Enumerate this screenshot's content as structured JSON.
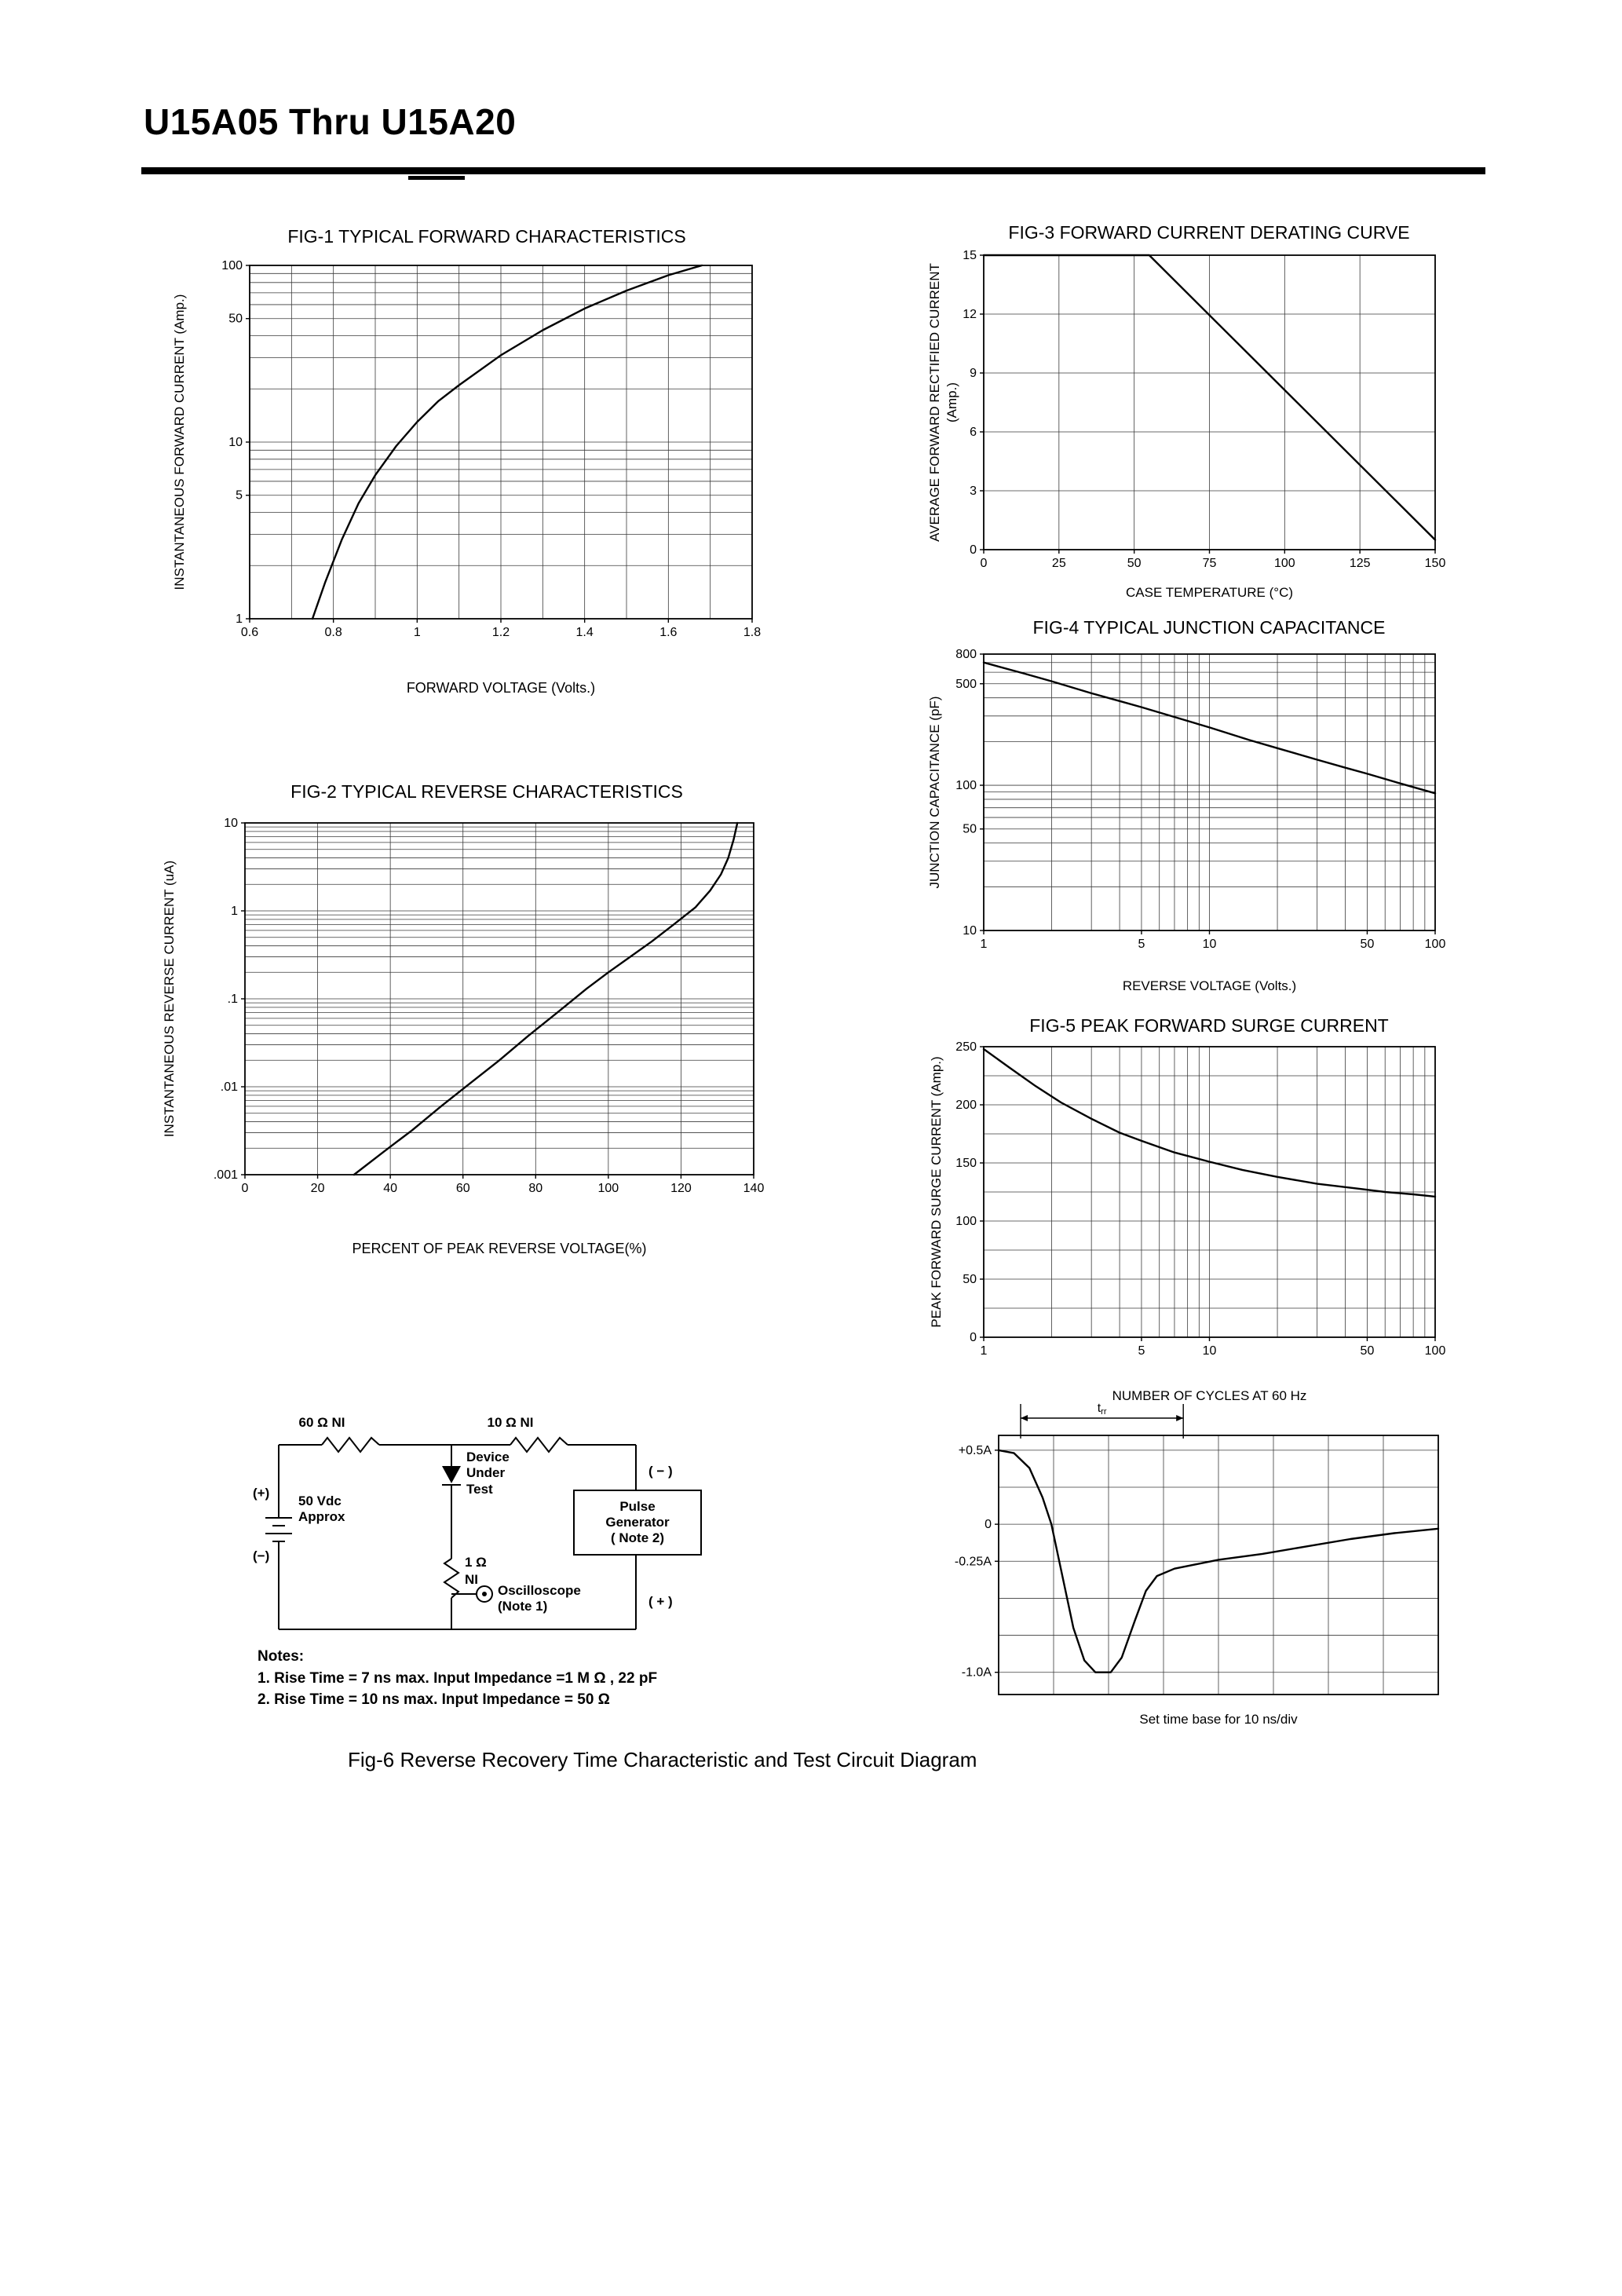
{
  "page": {
    "title": "U15A05 Thru U15A20"
  },
  "fig6_caption": "Fig-6 Reverse Recovery Time Characteristic and Test Circuit Diagram",
  "figures": {
    "fig1": {
      "title": "FIG-1 TYPICAL FORWARD CHARACTERISTICS",
      "xlabel": "FORWARD VOLTAGE (Volts.)",
      "ylabel": "INSTANTANEOUS FORWARD CURRENT (Amp.)"
    },
    "fig2": {
      "title": "FIG-2 TYPICAL REVERSE CHARACTERISTICS",
      "xlabel": "PERCENT OF PEAK REVERSE VOLTAGE(%)",
      "ylabel": "INSTANTANEOUS REVERSE CURRENT (uA)"
    },
    "fig3": {
      "title": "FIG-3 FORWARD CURRENT DERATING CURVE",
      "xlabel": "CASE TEMPERATURE (°C)",
      "ylabel": "AVERAGE FORWARD RECTIFIED CURRENT (Amp.)"
    },
    "fig4": {
      "title": "FIG-4 TYPICAL JUNCTION CAPACITANCE",
      "xlabel": "REVERSE VOLTAGE (Volts.)",
      "ylabel": "JUNCTION CAPACITANCE (pF)"
    },
    "fig5": {
      "title": "FIG-5 PEAK FORWARD SURGE CURRENT",
      "xlabel": "NUMBER OF CYCLES AT 60 Hz",
      "ylabel": "PEAK FORWARD SURGE CURRENT (Amp.)"
    },
    "fig6": {
      "timebase": "Set time base for 10  ns/div"
    }
  },
  "circuit": {
    "r60": "60 Ω  NI",
    "r10": "10 Ω  NI",
    "dut": "Device\nUnder\nTest",
    "plus_left": "(+)",
    "minus_left": "(−)",
    "battery": "50 Vdc\nApprox",
    "pulse": "Pulse\nGenerator\n( Note 2)",
    "minus_right": "( − )",
    "plus_right": "( + )",
    "r1": "1 Ω",
    "ni": "NI",
    "osc": "Oscilloscope\n(Note 1)",
    "notes_title": "Notes:",
    "note1": "1. Rise Time = 7 ns max. Input Impedance =1 M Ω , 22 pF",
    "note2": "2. Rise Time = 10 ns max. Input Impedance = 50 Ω"
  },
  "chart_data": [
    {
      "id": "fig1",
      "type": "line",
      "title": "FIG-1 TYPICAL FORWARD CHARACTERISTICS",
      "xlabel": "FORWARD VOLTAGE (Volts.)",
      "ylabel": "INSTANTANEOUS FORWARD CURRENT (Amp.)",
      "x": {
        "scale": "linear",
        "min": 0.6,
        "max": 1.8,
        "grid_step": 0.1,
        "tick_values": [
          0.6,
          0.8,
          1,
          1.2,
          1.4,
          1.6,
          1.8
        ],
        "tick_labels": [
          "0.6",
          "0.8",
          "1",
          "1.2",
          "1.4",
          "1.6",
          "1.8"
        ]
      },
      "y": {
        "scale": "log",
        "min": 1,
        "max": 100,
        "tick_values": [
          1,
          5,
          10,
          50,
          100
        ],
        "tick_labels": [
          "1",
          "5",
          "10",
          "50",
          "100"
        ]
      },
      "series": [
        {
          "name": "instantaneous-forward-current",
          "points": [
            [
              0.75,
              1
            ],
            [
              0.78,
              1.6
            ],
            [
              0.82,
              2.8
            ],
            [
              0.86,
              4.5
            ],
            [
              0.9,
              6.5
            ],
            [
              0.95,
              9.5
            ],
            [
              1,
              13
            ],
            [
              1.05,
              17
            ],
            [
              1.1,
              21
            ],
            [
              1.2,
              31
            ],
            [
              1.3,
              43
            ],
            [
              1.4,
              57
            ],
            [
              1.5,
              72
            ],
            [
              1.6,
              88
            ],
            [
              1.68,
              100
            ]
          ]
        }
      ]
    },
    {
      "id": "fig2",
      "type": "line",
      "title": "FIG-2 TYPICAL REVERSE CHARACTERISTICS",
      "xlabel": "PERCENT OF PEAK REVERSE VOLTAGE(%)",
      "ylabel": "INSTANTANEOUS REVERSE CURRENT (uA)",
      "x": {
        "scale": "linear",
        "min": 0,
        "max": 140,
        "grid_step": 20,
        "tick_values": [
          0,
          20,
          40,
          60,
          80,
          100,
          120,
          140
        ],
        "tick_labels": [
          "0",
          "20",
          "40",
          "60",
          "80",
          "100",
          "120",
          "140"
        ]
      },
      "y": {
        "scale": "log",
        "min": 0.001,
        "max": 10,
        "tick_values": [
          10,
          1,
          0.1,
          0.01,
          0.001
        ],
        "tick_labels": [
          "10",
          "1",
          ".1",
          ".01",
          ".001"
        ]
      },
      "series": [
        {
          "name": "instantaneous-reverse-current",
          "points": [
            [
              30,
              0.001
            ],
            [
              38,
              0.0018
            ],
            [
              46,
              0.0032
            ],
            [
              54,
              0.006
            ],
            [
              62,
              0.011
            ],
            [
              70,
              0.02
            ],
            [
              78,
              0.038
            ],
            [
              86,
              0.07
            ],
            [
              94,
              0.13
            ],
            [
              100,
              0.2
            ],
            [
              106,
              0.3
            ],
            [
              112,
              0.45
            ],
            [
              118,
              0.7
            ],
            [
              124,
              1.1
            ],
            [
              128,
              1.7
            ],
            [
              131,
              2.6
            ],
            [
              133,
              4
            ],
            [
              134.5,
              6.5
            ],
            [
              135.5,
              10
            ]
          ]
        }
      ]
    },
    {
      "id": "fig3",
      "type": "line",
      "title": "FIG-3 FORWARD CURRENT DERATING CURVE",
      "xlabel": "CASE TEMPERATURE (°C)",
      "ylabel": "AVERAGE FORWARD RECTIFIED CURRENT (Amp.)",
      "x": {
        "scale": "linear",
        "min": 0,
        "max": 150,
        "grid_step": 25,
        "tick_values": [
          0,
          25,
          50,
          75,
          100,
          125,
          150
        ],
        "tick_labels": [
          "0",
          "25",
          "50",
          "75",
          "100",
          "125",
          "150"
        ]
      },
      "y": {
        "scale": "linear",
        "min": 0,
        "max": 15,
        "grid_step": 3,
        "tick_values": [
          0,
          3,
          6,
          9,
          12,
          15
        ],
        "tick_labels": [
          "0",
          "3",
          "6",
          "9",
          "12",
          "15"
        ]
      },
      "series": [
        {
          "name": "average-forward-rectified-current",
          "points": [
            [
              0,
              15
            ],
            [
              55,
              15
            ],
            [
              150,
              0.5
            ]
          ]
        }
      ]
    },
    {
      "id": "fig4",
      "type": "line",
      "title": "FIG-4 TYPICAL JUNCTION CAPACITANCE",
      "xlabel": "REVERSE VOLTAGE (Volts.)",
      "ylabel": "JUNCTION CAPACITANCE (pF)",
      "x": {
        "scale": "log",
        "min": 1,
        "max": 100,
        "tick_values": [
          1,
          5,
          10,
          50,
          100
        ],
        "tick_labels": [
          "1",
          "5",
          "10",
          "50",
          "100"
        ]
      },
      "y": {
        "scale": "log",
        "min": 10,
        "max": 800,
        "tick_values": [
          800,
          500,
          100,
          50,
          10
        ],
        "tick_labels": [
          "800",
          "500",
          "100",
          "50",
          "10"
        ]
      },
      "series": [
        {
          "name": "junction-capacitance",
          "points": [
            [
              1,
              700
            ],
            [
              1.5,
              590
            ],
            [
              2,
              520
            ],
            [
              3,
              430
            ],
            [
              4,
              380
            ],
            [
              5,
              345
            ],
            [
              7,
              295
            ],
            [
              10,
              250
            ],
            [
              15,
              205
            ],
            [
              20,
              180
            ],
            [
              30,
              150
            ],
            [
              40,
              132
            ],
            [
              50,
              120
            ],
            [
              70,
              103
            ],
            [
              100,
              88
            ]
          ]
        }
      ]
    },
    {
      "id": "fig5",
      "type": "line",
      "title": "FIG-5 PEAK FORWARD SURGE CURRENT",
      "xlabel": "NUMBER OF CYCLES AT 60 Hz",
      "ylabel": "PEAK FORWARD SURGE CURRENT (Amp.)",
      "x": {
        "scale": "log",
        "min": 1,
        "max": 100,
        "tick_values": [
          1,
          5,
          10,
          50,
          100
        ],
        "tick_labels": [
          "1",
          "5",
          "10",
          "50",
          "100"
        ]
      },
      "y": {
        "scale": "linear",
        "min": 0,
        "max": 250,
        "grid_step": 25,
        "tick_values": [
          0,
          50,
          100,
          150,
          200,
          250
        ],
        "tick_labels": [
          "0",
          "50",
          "100",
          "150",
          "200",
          "250"
        ]
      },
      "series": [
        {
          "name": "peak-forward-surge-current",
          "points": [
            [
              1,
              248
            ],
            [
              1.3,
              232
            ],
            [
              1.7,
              216
            ],
            [
              2.2,
              202
            ],
            [
              3,
              188
            ],
            [
              4,
              176
            ],
            [
              5,
              169
            ],
            [
              7,
              159
            ],
            [
              10,
              151
            ],
            [
              14,
              144
            ],
            [
              20,
              138
            ],
            [
              30,
              132
            ],
            [
              45,
              128
            ],
            [
              60,
              125
            ],
            [
              80,
              123
            ],
            [
              100,
              121
            ]
          ]
        }
      ]
    },
    {
      "id": "fig6wave",
      "type": "line",
      "title": "Reverse Recovery Time Characteristic",
      "xlabel": "Set time base for 10  ns/div",
      "ylabel": "",
      "x": {
        "scale": "linear",
        "min": 0,
        "max": 10,
        "grid_step": 1.25,
        "tick_values": [],
        "tick_labels": []
      },
      "y": {
        "scale": "linear",
        "min": -1.15,
        "max": 0.6,
        "grid_values": [
          0.5,
          0.25,
          0,
          -0.25,
          -0.5,
          -0.75,
          -1
        ],
        "tick_values": [
          0.5,
          0,
          -0.25,
          -1
        ],
        "tick_labels": [
          "+0.5A",
          "0",
          "-0.25A",
          "-1.0A"
        ]
      },
      "annotation": {
        "x_from": 0.5,
        "x_to": 4.2,
        "label_main": "t",
        "label_sub": "rr"
      },
      "series": [
        {
          "name": "reverse-recovery-waveform",
          "points": [
            [
              0,
              0.5
            ],
            [
              0.35,
              0.48
            ],
            [
              0.7,
              0.38
            ],
            [
              1,
              0.18
            ],
            [
              1.2,
              0
            ],
            [
              1.45,
              -0.35
            ],
            [
              1.7,
              -0.7
            ],
            [
              1.95,
              -0.92
            ],
            [
              2.2,
              -1
            ],
            [
              2.55,
              -1
            ],
            [
              2.8,
              -0.9
            ],
            [
              3.1,
              -0.65
            ],
            [
              3.35,
              -0.45
            ],
            [
              3.6,
              -0.35
            ],
            [
              4,
              -0.3
            ],
            [
              4.5,
              -0.27
            ],
            [
              5,
              -0.24
            ],
            [
              6,
              -0.2
            ],
            [
              7,
              -0.15
            ],
            [
              8,
              -0.1
            ],
            [
              9,
              -0.06
            ],
            [
              10,
              -0.03
            ]
          ]
        }
      ]
    }
  ]
}
